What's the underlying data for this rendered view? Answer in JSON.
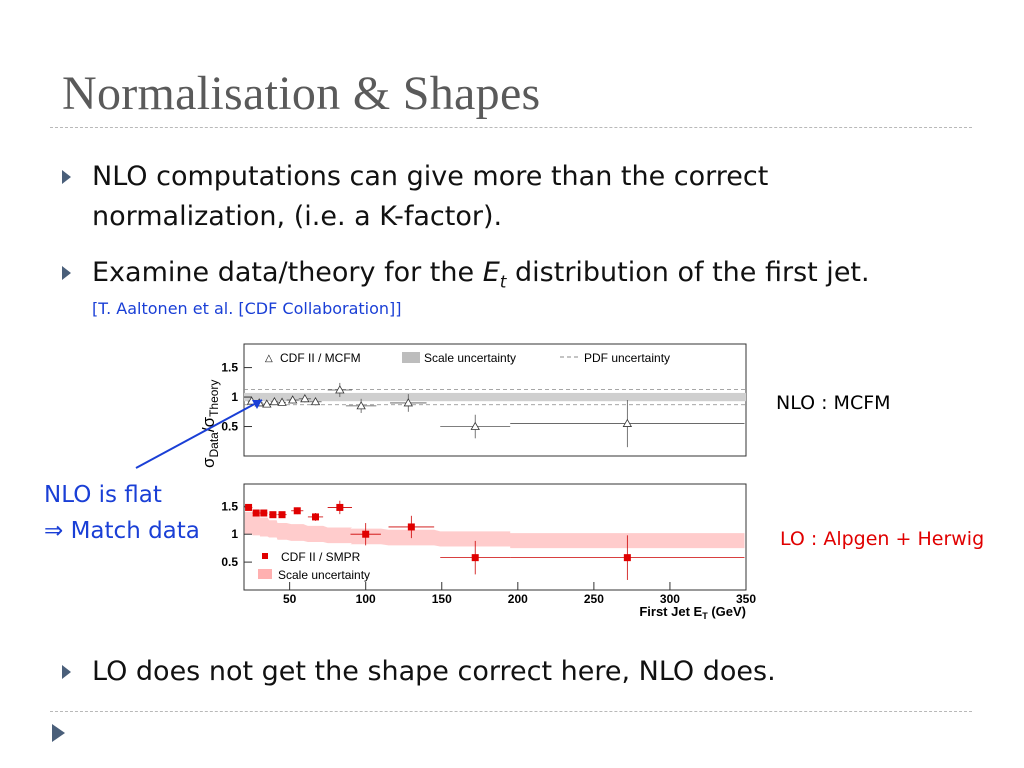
{
  "slide": {
    "title": "Normalisation & Shapes",
    "bullets": [
      {
        "line1": "NLO computations can give more than the correct",
        "line2": "normalization, (i.e. a K-factor)."
      },
      {
        "pre": "Examine data/theory for the ",
        "sym": "E",
        "sub": "t",
        "post": " distribution of the first jet."
      },
      {
        "text": "LO does not get the shape correct here, NLO does."
      }
    ],
    "citation": "[T. Aaltonen et al. [CDF Collaboration]]",
    "label_nlo": "NLO : MCFM",
    "label_lo": "LO : Alpgen  + Herwig",
    "annotation": {
      "line1": "NLO is flat",
      "arrow": "⇒",
      "line2": " Match data"
    }
  },
  "colors": {
    "title": "#5a5a5a",
    "accent": "#1a3fd6",
    "red": "#e00000",
    "bullet": "#4a5f7a"
  },
  "chart_data": [
    {
      "type": "scatter",
      "ylabel_sym": "σ",
      "ylabel_sub1": "Data",
      "ylabel_mid": "/σ",
      "ylabel_sub2": "Theory",
      "yticks": [
        "1.5",
        "1",
        "0.5"
      ],
      "xlim": [
        20,
        350
      ],
      "ylim": [
        0,
        1.9
      ],
      "legend": [
        "CDF II / MCFM",
        "Scale uncertainty",
        "PDF uncertainty"
      ],
      "legend_symbol": "△",
      "series": [
        {
          "name": "CDF II / MCFM",
          "x": [
            25,
            30,
            35,
            40,
            45,
            52,
            60,
            67,
            83,
            97,
            128,
            172,
            272
          ],
          "y": [
            0.93,
            0.9,
            0.88,
            0.92,
            0.91,
            0.95,
            0.97,
            0.92,
            1.12,
            0.85,
            0.9,
            0.5,
            0.55
          ],
          "err": [
            0.05,
            0.05,
            0.05,
            0.05,
            0.05,
            0.06,
            0.06,
            0.06,
            0.12,
            0.12,
            0.15,
            0.2,
            0.4
          ],
          "xerr": [
            2.5,
            2.5,
            2.5,
            2.5,
            2.5,
            4,
            4,
            4,
            8,
            10,
            12,
            23,
            77
          ]
        }
      ],
      "band_center": 1.0,
      "band_halfwidth": 0.07
    },
    {
      "type": "scatter",
      "yticks": [
        "1.5",
        "1",
        "0.5"
      ],
      "xticks": [
        "50",
        "100",
        "150",
        "200",
        "250",
        "300",
        "350"
      ],
      "xlabel_pre": "First Jet E",
      "xlabel_sub": "T",
      "xlabel_post": " (GeV)",
      "xlim": [
        20,
        350
      ],
      "ylim": [
        0,
        1.9
      ],
      "legend": [
        "CDF II / SMPR",
        "Scale uncertainty"
      ],
      "series": [
        {
          "name": "CDF II / SMPR",
          "x": [
            23,
            28,
            33,
            39,
            45,
            55,
            67,
            83,
            100,
            130,
            172,
            272
          ],
          "y": [
            1.48,
            1.38,
            1.38,
            1.35,
            1.35,
            1.42,
            1.31,
            1.48,
            1.0,
            1.13,
            0.58,
            0.58
          ],
          "err": [
            0.05,
            0.05,
            0.05,
            0.05,
            0.05,
            0.06,
            0.07,
            0.12,
            0.2,
            0.2,
            0.3,
            0.4
          ],
          "xerr": [
            2.5,
            2.5,
            2.5,
            2.5,
            3,
            4,
            5,
            8,
            10,
            15,
            23,
            77
          ]
        }
      ],
      "band_top": [
        1.4,
        1.35,
        1.3,
        1.25,
        1.2,
        1.18,
        1.15,
        1.12,
        1.1,
        1.08,
        1.05,
        1.02
      ],
      "band_bottom": [
        1.0,
        0.98,
        0.96,
        0.94,
        0.9,
        0.88,
        0.86,
        0.84,
        0.82,
        0.8,
        0.78,
        0.75
      ]
    }
  ]
}
